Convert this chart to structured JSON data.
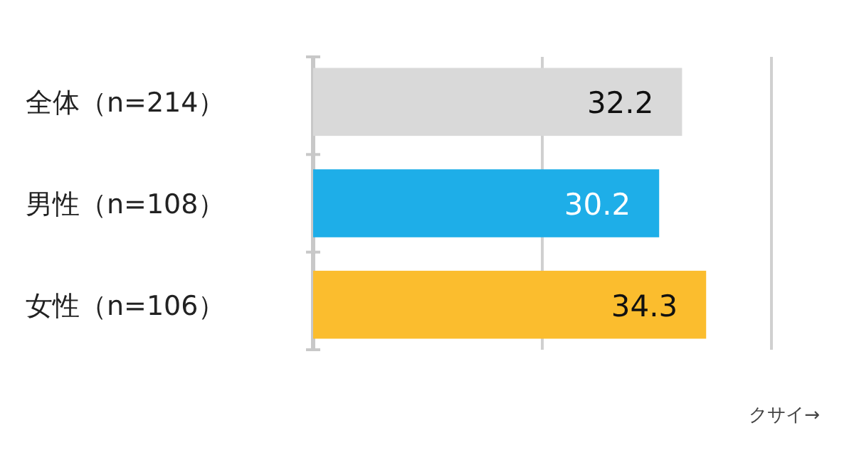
{
  "chart_data": {
    "type": "bar",
    "orientation": "horizontal",
    "categories": [
      "全体（n=214）",
      "男性（n=108）",
      "女性（n=106）"
    ],
    "values": [
      32.2,
      30.2,
      34.3
    ],
    "colors": [
      "#d9d9d9",
      "#1eaee8",
      "#fbbd2e"
    ],
    "xlim": [
      0,
      40
    ],
    "xticks": [
      {
        "value": 0,
        "label": null
      },
      {
        "value": 20,
        "label": null
      },
      {
        "value": 40,
        "label": null
      }
    ],
    "tick_labels": "y",
    "grid": "x",
    "data_labels": true,
    "xlabel": "クサイ→"
  }
}
